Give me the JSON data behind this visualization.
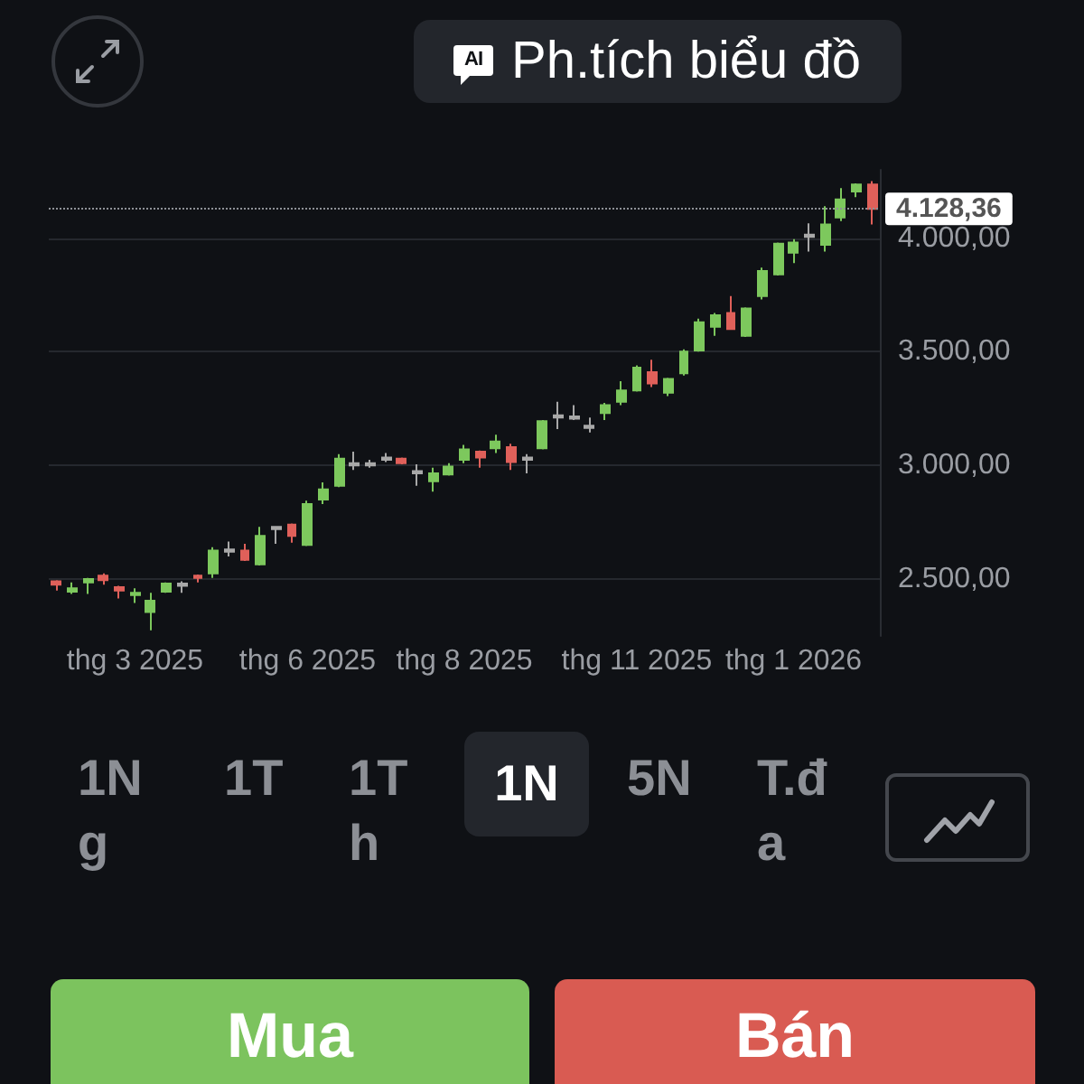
{
  "chart_data": {
    "type": "candlestick",
    "categories": [
      null,
      null,
      null,
      null,
      null,
      "thg 3 2025",
      null,
      null,
      null,
      null,
      null,
      null,
      null,
      null,
      null,
      null,
      "thg 6 2025",
      null,
      null,
      null,
      null,
      null,
      null,
      null,
      null,
      null,
      "thg 8 2025",
      null,
      null,
      null,
      null,
      null,
      null,
      null,
      null,
      null,
      null,
      "thg 11 2025",
      null,
      null,
      null,
      null,
      null,
      null,
      null,
      null,
      null,
      "thg 1 2026",
      null,
      null,
      null,
      null,
      null
    ],
    "ohlc": [
      [
        2490,
        2495,
        2450,
        2475
      ],
      [
        2445,
        2485,
        2435,
        2460
      ],
      [
        2485,
        2505,
        2435,
        2500
      ],
      [
        2515,
        2525,
        2475,
        2495
      ],
      [
        2465,
        2470,
        2415,
        2450
      ],
      [
        2430,
        2460,
        2395,
        2440
      ],
      [
        2355,
        2440,
        2275,
        2405
      ],
      [
        2445,
        2485,
        2440,
        2480
      ],
      [
        2470,
        2490,
        2440,
        2480
      ],
      [
        2515,
        2520,
        2485,
        2505
      ],
      [
        2525,
        2640,
        2505,
        2625
      ],
      [
        2620,
        2665,
        2600,
        2630
      ],
      [
        2625,
        2655,
        2580,
        2585
      ],
      [
        2565,
        2730,
        2560,
        2690
      ],
      [
        2720,
        2730,
        2655,
        2730
      ],
      [
        2740,
        2745,
        2660,
        2690
      ],
      [
        2650,
        2845,
        2645,
        2830
      ],
      [
        2850,
        2925,
        2830,
        2895
      ],
      [
        2910,
        3050,
        2905,
        3030
      ],
      [
        3000,
        3060,
        2980,
        3010
      ],
      [
        3000,
        3025,
        2990,
        3010
      ],
      [
        3025,
        3055,
        3015,
        3035
      ],
      [
        3030,
        3035,
        3005,
        3010
      ],
      [
        2965,
        3005,
        2910,
        2975
      ],
      [
        2930,
        2990,
        2885,
        2965
      ],
      [
        2960,
        3010,
        2955,
        2995
      ],
      [
        3025,
        3090,
        3010,
        3070
      ],
      [
        3060,
        3065,
        2990,
        3035
      ],
      [
        3075,
        3135,
        3055,
        3105
      ],
      [
        3080,
        3095,
        2980,
        3015
      ],
      [
        3025,
        3050,
        2965,
        3035
      ],
      [
        3075,
        3200,
        3070,
        3195
      ],
      [
        3210,
        3280,
        3160,
        3220
      ],
      [
        3205,
        3265,
        3200,
        3215
      ],
      [
        3165,
        3210,
        3145,
        3175
      ],
      [
        3230,
        3275,
        3200,
        3265
      ],
      [
        3280,
        3370,
        3265,
        3330
      ],
      [
        3330,
        3440,
        3325,
        3430
      ],
      [
        3410,
        3465,
        3345,
        3360
      ],
      [
        3320,
        3385,
        3305,
        3380
      ],
      [
        3405,
        3510,
        3395,
        3500
      ],
      [
        3505,
        3645,
        3500,
        3630
      ],
      [
        3610,
        3670,
        3570,
        3660
      ],
      [
        3670,
        3745,
        3600,
        3600
      ],
      [
        3570,
        3695,
        3565,
        3690
      ],
      [
        3745,
        3870,
        3730,
        3855
      ],
      [
        3840,
        3980,
        3835,
        3975
      ],
      [
        3935,
        3995,
        3890,
        3980
      ],
      [
        4005,
        4065,
        3940,
        4015
      ],
      [
        3970,
        4140,
        3940,
        4060
      ],
      [
        4090,
        4220,
        4075,
        4170
      ],
      [
        4205,
        4240,
        4180,
        4235
      ],
      [
        4235,
        4250,
        4060,
        4128.36
      ]
    ],
    "colors": [
      "#e0605a",
      "#7dc85d",
      "#7dc85d",
      "#e0605a",
      "#e0605a",
      "#7dc85d",
      "#7dc85d",
      "#7dc85d",
      "#a8a8a8",
      "#e0605a",
      "#7dc85d",
      "#a8a8a8",
      "#e0605a",
      "#7dc85d",
      "#a8a8a8",
      "#e0605a",
      "#7dc85d",
      "#7dc85d",
      "#7dc85d",
      "#a8a8a8",
      "#a8a8a8",
      "#a8a8a8",
      "#e0605a",
      "#a8a8a8",
      "#7dc85d",
      "#7dc85d",
      "#7dc85d",
      "#e0605a",
      "#7dc85d",
      "#e0605a",
      "#a8a8a8",
      "#7dc85d",
      "#a8a8a8",
      "#a8a8a8",
      "#a8a8a8",
      "#7dc85d",
      "#7dc85d",
      "#7dc85d",
      "#e0605a",
      "#7dc85d",
      "#7dc85d",
      "#7dc85d",
      "#7dc85d",
      "#e0605a",
      "#7dc85d",
      "#7dc85d",
      "#7dc85d",
      "#7dc85d",
      "#a8a8a8",
      "#7dc85d",
      "#7dc85d",
      "#7dc85d",
      "#e0605a"
    ],
    "ylim": [
      2250,
      4300
    ],
    "yticks": [
      {
        "value": 2500,
        "label": "2.500,00"
      },
      {
        "value": 3000,
        "label": "3.000,00"
      },
      {
        "value": 3500,
        "label": "3.500,00"
      },
      {
        "value": 4000,
        "label": "4.000,00"
      }
    ],
    "grid": "y",
    "ref_lines": [
      {
        "axis": "y",
        "value": 4128.36,
        "label": "4.128,36",
        "line_style": "dotted",
        "color": "#8e9197"
      }
    ],
    "annotations": [
      "AI",
      "Ph.tích biểu đồ",
      "1Ng",
      "1T",
      "1Th",
      "1N",
      "5N",
      "T.đa",
      "Mua",
      "Bán"
    ]
  }
}
